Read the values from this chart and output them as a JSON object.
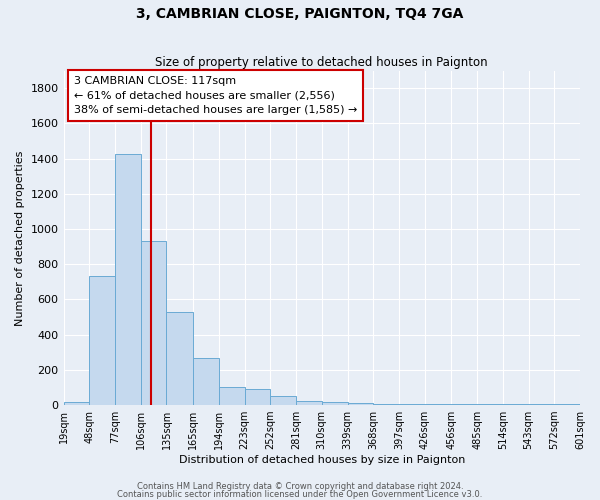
{
  "title": "3, CAMBRIAN CLOSE, PAIGNTON, TQ4 7GA",
  "subtitle": "Size of property relative to detached houses in Paignton",
  "xlabel": "Distribution of detached houses by size in Paignton",
  "ylabel": "Number of detached properties",
  "bar_values": [
    20,
    735,
    1425,
    935,
    530,
    270,
    100,
    90,
    50,
    25,
    15,
    10,
    5,
    5,
    5,
    5,
    5,
    5,
    5,
    5
  ],
  "bin_edges": [
    19,
    48,
    77,
    106,
    135,
    165,
    194,
    223,
    252,
    281,
    310,
    339,
    368,
    397,
    426,
    456,
    485,
    514,
    543,
    572,
    601
  ],
  "bin_labels": [
    "19sqm",
    "48sqm",
    "77sqm",
    "106sqm",
    "135sqm",
    "165sqm",
    "194sqm",
    "223sqm",
    "252sqm",
    "281sqm",
    "310sqm",
    "339sqm",
    "368sqm",
    "397sqm",
    "426sqm",
    "456sqm",
    "485sqm",
    "514sqm",
    "543sqm",
    "572sqm",
    "601sqm"
  ],
  "bar_color": "#c5d9ee",
  "bar_edge_color": "#6aaad4",
  "vline_x": 117,
  "vline_color": "#cc0000",
  "annotation_text": "3 CAMBRIAN CLOSE: 117sqm\n← 61% of detached houses are smaller (2,556)\n38% of semi-detached houses are larger (1,585) →",
  "annotation_box_color": "#ffffff",
  "annotation_box_edge": "#cc0000",
  "ylim": [
    0,
    1900
  ],
  "yticks": [
    0,
    200,
    400,
    600,
    800,
    1000,
    1200,
    1400,
    1600,
    1800
  ],
  "footer_line1": "Contains HM Land Registry data © Crown copyright and database right 2024.",
  "footer_line2": "Contains public sector information licensed under the Open Government Licence v3.0.",
  "background_color": "#e8eef6",
  "grid_color": "#ffffff",
  "title_fontsize": 10,
  "subtitle_fontsize": 8.5
}
